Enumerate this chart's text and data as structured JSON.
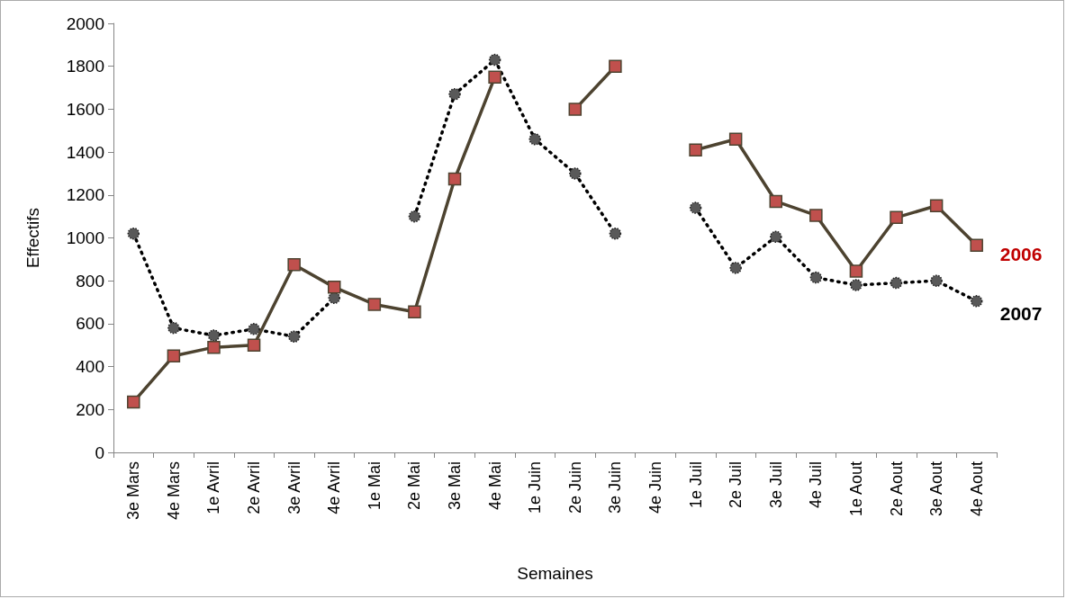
{
  "chart_data": {
    "type": "line",
    "xlabel": "Semaines",
    "ylabel": "Effectifs",
    "categories": [
      "3e Mars",
      "4e Mars",
      "1e Avril",
      "2e Avril",
      "3e Avril",
      "4e Avril",
      "1e Mai",
      "2e Mai",
      "3e Mai",
      "4e Mai",
      "1e Juin",
      "2e Juin",
      "3e Juin",
      "4e Juin",
      "1e Juil",
      "2e Juil",
      "3e Juil",
      "4e Juil",
      "1e Aout",
      "2e Aout",
      "3e Aout",
      "4e Aout"
    ],
    "series": [
      {
        "name": "2006",
        "color": "#c0504d",
        "marker": "square",
        "line_style": "solid",
        "values": [
          235,
          450,
          490,
          500,
          875,
          770,
          690,
          655,
          1275,
          1750,
          null,
          1600,
          1800,
          null,
          1410,
          1460,
          1170,
          1105,
          845,
          1095,
          1150,
          965
        ]
      },
      {
        "name": "2007",
        "color": "#595959",
        "marker": "circle",
        "line_style": "dotted",
        "values": [
          1020,
          580,
          545,
          575,
          540,
          720,
          null,
          1100,
          1670,
          1830,
          1460,
          1300,
          1020,
          null,
          1140,
          860,
          1005,
          815,
          780,
          790,
          800,
          705
        ]
      }
    ],
    "ylim": [
      0,
      2000
    ],
    "yticks": [
      0,
      200,
      400,
      600,
      800,
      1000,
      1200,
      1400,
      1600,
      1800,
      2000
    ],
    "grid": false,
    "legend": false
  }
}
